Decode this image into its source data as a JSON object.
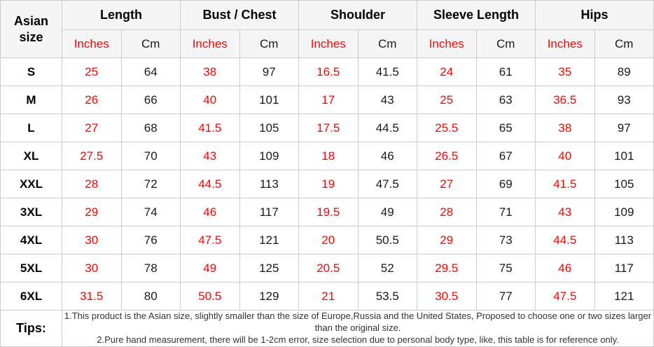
{
  "table": {
    "corner_header": "Asian size",
    "groups": [
      {
        "label": "Length"
      },
      {
        "label": "Bust / Chest"
      },
      {
        "label": "Shoulder"
      },
      {
        "label": "Sleeve Length"
      },
      {
        "label": "Hips"
      }
    ],
    "unit_headers": {
      "inches": "Inches",
      "cm": "Cm"
    },
    "rows": [
      {
        "size": "S",
        "values": [
          "25",
          "64",
          "38",
          "97",
          "16.5",
          "41.5",
          "24",
          "61",
          "35",
          "89"
        ]
      },
      {
        "size": "M",
        "values": [
          "26",
          "66",
          "40",
          "101",
          "17",
          "43",
          "25",
          "63",
          "36.5",
          "93"
        ]
      },
      {
        "size": "L",
        "values": [
          "27",
          "68",
          "41.5",
          "105",
          "17.5",
          "44.5",
          "25.5",
          "65",
          "38",
          "97"
        ]
      },
      {
        "size": "XL",
        "values": [
          "27.5",
          "70",
          "43",
          "109",
          "18",
          "46",
          "26.5",
          "67",
          "40",
          "101"
        ]
      },
      {
        "size": "XXL",
        "values": [
          "28",
          "72",
          "44.5",
          "113",
          "19",
          "47.5",
          "27",
          "69",
          "41.5",
          "105"
        ]
      },
      {
        "size": "3XL",
        "values": [
          "29",
          "74",
          "46",
          "117",
          "19.5",
          "49",
          "28",
          "71",
          "43",
          "109"
        ]
      },
      {
        "size": "4XL",
        "values": [
          "30",
          "76",
          "47.5",
          "121",
          "20",
          "50.5",
          "29",
          "73",
          "44.5",
          "113"
        ]
      },
      {
        "size": "5XL",
        "values": [
          "30",
          "78",
          "49",
          "125",
          "20.5",
          "52",
          "29.5",
          "75",
          "46",
          "117"
        ]
      },
      {
        "size": "6XL",
        "values": [
          "31.5",
          "80",
          "50.5",
          "129",
          "21",
          "53.5",
          "30.5",
          "77",
          "47.5",
          "121"
        ]
      }
    ],
    "tips": {
      "label": "Tips:",
      "lines": [
        "1.This product is the Asian size, slightly smaller than the size of Europe,Russia and the United States, Proposed to choose one or two sizes larger than the original size.",
        "2.Pure hand measurement, there will be 1-2cm error, size selection due to personal body type, like, this table is for reference only."
      ]
    },
    "colors": {
      "inches_red": "#ff0000",
      "value_black": "#1a1a1a",
      "header_bg": "#f5f5f5",
      "grid_border": "#cccccc",
      "tips_text": "#333333"
    }
  }
}
